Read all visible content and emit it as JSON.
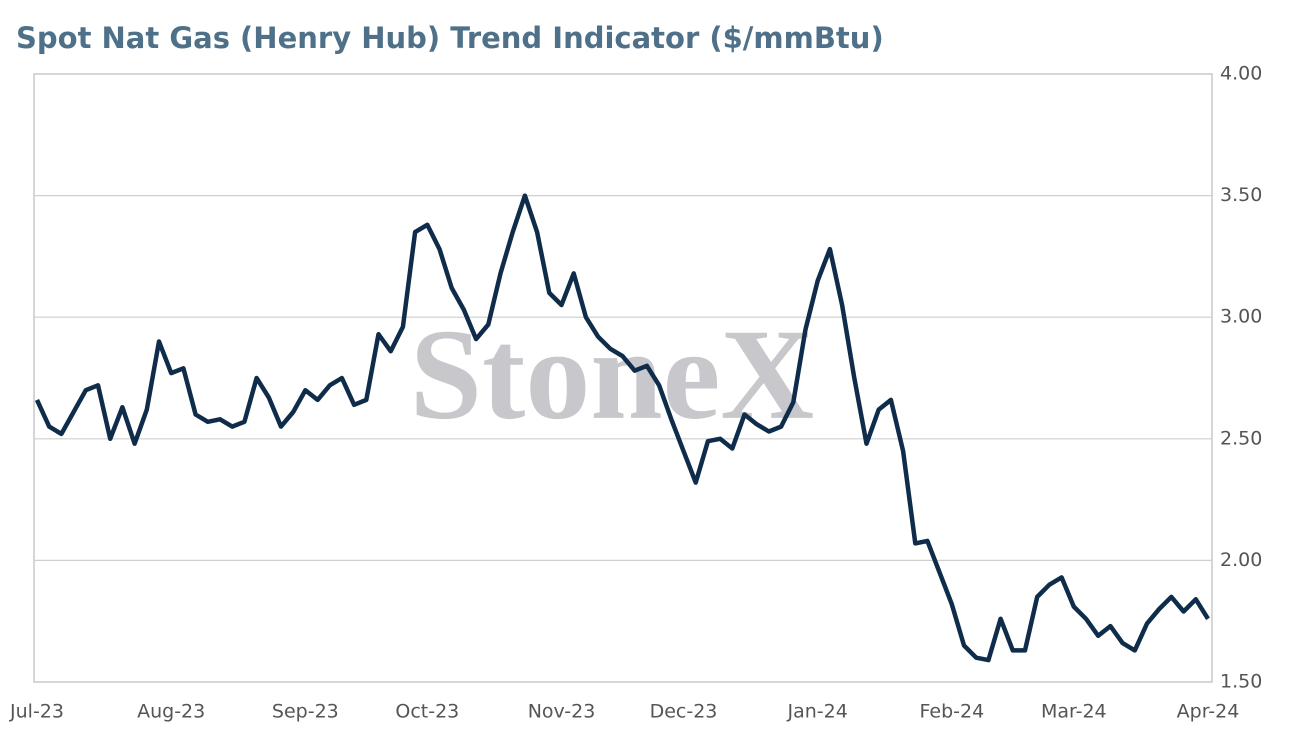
{
  "chart_data": {
    "type": "line",
    "title": "Spot Nat Gas (Henry Hub) Trend Indicator ($/mmBtu)",
    "watermark": "StoneX",
    "categories": [
      "Jul-23",
      null,
      null,
      null,
      null,
      null,
      null,
      null,
      null,
      null,
      null,
      "Aug-23",
      null,
      null,
      null,
      null,
      null,
      null,
      null,
      null,
      null,
      null,
      "Sep-23",
      null,
      null,
      null,
      null,
      null,
      null,
      null,
      null,
      null,
      "Oct-23",
      null,
      null,
      null,
      null,
      null,
      null,
      null,
      null,
      null,
      null,
      "Nov-23",
      null,
      null,
      null,
      null,
      null,
      null,
      null,
      null,
      null,
      "Dec-23",
      null,
      null,
      null,
      null,
      null,
      null,
      null,
      null,
      null,
      null,
      "Jan-24",
      null,
      null,
      null,
      null,
      null,
      null,
      null,
      null,
      null,
      null,
      "Feb-24",
      null,
      null,
      null,
      null,
      null,
      null,
      null,
      null,
      null,
      "Mar-24",
      null,
      null,
      null,
      null,
      null,
      null,
      null,
      null,
      null,
      null,
      "Apr-24"
    ],
    "series": [
      {
        "name": "Spot Nat Gas",
        "color": "#0f2d4a",
        "values": [
          2.66,
          2.55,
          2.52,
          2.61,
          2.7,
          2.72,
          2.5,
          2.63,
          2.48,
          2.62,
          2.9,
          2.77,
          2.79,
          2.6,
          2.57,
          2.58,
          2.55,
          2.57,
          2.75,
          2.67,
          2.55,
          2.61,
          2.7,
          2.66,
          2.72,
          2.75,
          2.64,
          2.66,
          2.93,
          2.86,
          2.96,
          3.35,
          3.38,
          3.28,
          3.12,
          3.03,
          2.91,
          2.97,
          3.18,
          3.35,
          3.5,
          3.35,
          3.1,
          3.05,
          3.18,
          3.0,
          2.92,
          2.87,
          2.84,
          2.78,
          2.8,
          2.72,
          2.58,
          2.45,
          2.32,
          2.49,
          2.5,
          2.46,
          2.6,
          2.56,
          2.53,
          2.55,
          2.65,
          2.95,
          3.15,
          3.28,
          3.05,
          2.75,
          2.48,
          2.62,
          2.66,
          2.45,
          2.07,
          2.08,
          1.95,
          1.82,
          1.65,
          1.6,
          1.59,
          1.76,
          1.63,
          1.63,
          1.85,
          1.9,
          1.93,
          1.81,
          1.76,
          1.69,
          1.73,
          1.66,
          1.63,
          1.74,
          1.8,
          1.85,
          1.79,
          1.84,
          1.76
        ]
      }
    ],
    "ylim": [
      1.5,
      4.0
    ],
    "yticks": [
      {
        "value": 1.5,
        "label": "1.50"
      },
      {
        "value": 2.0,
        "label": "2.00"
      },
      {
        "value": 2.5,
        "label": "2.50"
      },
      {
        "value": 3.0,
        "label": "3.00"
      },
      {
        "value": 3.5,
        "label": "3.50"
      },
      {
        "value": 4.0,
        "label": "4.00"
      }
    ],
    "grid": true
  }
}
